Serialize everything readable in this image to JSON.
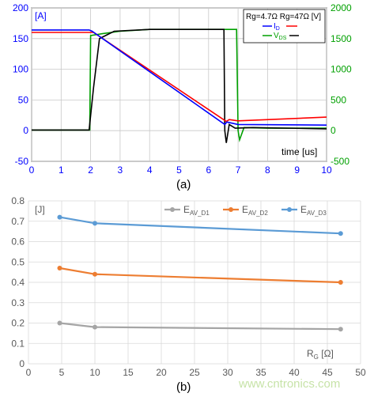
{
  "chart_data": [
    {
      "type": "line",
      "caption": "(a)",
      "y_unit_label": "[A]",
      "legend_header": "Rg=4.7Ω  Rg=47Ω  [V]",
      "legend_id_label": "I",
      "legend_id_sub": "D",
      "legend_vds_label": "V",
      "legend_vds_sub": "DS",
      "xlabel": "time [us]",
      "xlim": [
        0,
        10
      ],
      "xticks": [
        "0",
        "1",
        "2",
        "3",
        "4",
        "5",
        "6",
        "7",
        "8",
        "9",
        "10"
      ],
      "ylim_left": [
        -50,
        200
      ],
      "yticks_left": [
        "-50",
        "0",
        "50",
        "100",
        "150",
        "200"
      ],
      "ylim_right": [
        -500,
        2000
      ],
      "yticks_right": [
        "-500",
        "0",
        "500",
        "1000",
        "1500",
        "2000"
      ],
      "grid": true,
      "legend_position": "top-right",
      "colors": {
        "id_rg47": "#0000ff",
        "id_rg4": "#ff0000",
        "vds_rg47": "#00a000",
        "vds_rg4": "#000000",
        "right_axis": "#00a000",
        "left_axis": "#0000ff"
      },
      "series": [
        {
          "name": "I_D Rg=4.7Ω",
          "axis": "left",
          "x": [
            0,
            1.95,
            2.05,
            6.55,
            6.62,
            7.0,
            10
          ],
          "y": [
            164,
            164,
            162,
            10,
            14,
            10,
            9
          ]
        },
        {
          "name": "I_D Rg=47Ω",
          "axis": "left",
          "x": [
            0,
            2.0,
            2.1,
            6.6,
            6.7,
            7.0,
            10
          ],
          "y": [
            160,
            160,
            160,
            15,
            18,
            16,
            22
          ]
        },
        {
          "name": "V_DS Rg=4.7Ω",
          "axis": "right",
          "x": [
            0,
            1.95,
            2.1,
            2.3,
            2.8,
            4.0,
            6.52,
            6.55,
            6.6,
            6.7,
            6.9,
            7.5,
            10
          ],
          "y": [
            10,
            10,
            700,
            1500,
            1620,
            1650,
            1650,
            0,
            -200,
            100,
            40,
            50,
            30
          ]
        },
        {
          "name": "V_DS Rg=47Ω",
          "axis": "right",
          "x": [
            0,
            1.97,
            2.0,
            2.4,
            3.0,
            4.0,
            6.95,
            7.0,
            7.05,
            7.2,
            8.0,
            10
          ],
          "y": [
            10,
            10,
            1550,
            1580,
            1620,
            1650,
            1650,
            0,
            -150,
            50,
            40,
            40
          ]
        }
      ]
    },
    {
      "type": "line",
      "caption": "(b)",
      "y_unit_label": "[J]",
      "xlabel_main": "R",
      "xlabel_sub": "G",
      "xlabel_unit": " [Ω]",
      "xlim": [
        0,
        50
      ],
      "xticks": [
        "0",
        "5",
        "10",
        "15",
        "20",
        "25",
        "30",
        "35",
        "40",
        "45",
        "50"
      ],
      "ylim": [
        0,
        0.8
      ],
      "yticks": [
        "0",
        "0.1",
        "0.2",
        "0.3",
        "0.4",
        "0.5",
        "0.6",
        "0.7",
        "0.8"
      ],
      "grid": true,
      "legend_position": "top-right",
      "series": [
        {
          "name": "E",
          "sub": "AV_D1",
          "color": "#a5a5a5",
          "x": [
            4.7,
            10,
            47
          ],
          "y": [
            0.2,
            0.18,
            0.17
          ]
        },
        {
          "name": "E",
          "sub": "AV_D2",
          "color": "#ed7d31",
          "x": [
            4.7,
            10,
            47
          ],
          "y": [
            0.47,
            0.44,
            0.4
          ]
        },
        {
          "name": "E",
          "sub": "AV_D3",
          "color": "#5b9bd5",
          "x": [
            4.7,
            10,
            47
          ],
          "y": [
            0.72,
            0.69,
            0.64
          ]
        }
      ]
    }
  ],
  "watermark": "www.cntronics.com"
}
